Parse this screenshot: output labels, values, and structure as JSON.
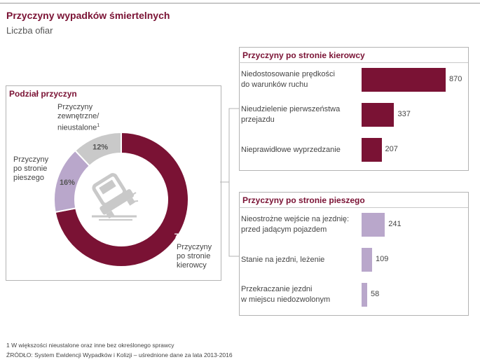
{
  "header": {
    "title": "Przyczyny wypadków śmiertelnych",
    "subtitle": "Liczba ofiar"
  },
  "colors": {
    "driver": "#7a1234",
    "pedestrian": "#b9a7cb",
    "external": "#c9c9c9",
    "accent": "#7a1234"
  },
  "donut": {
    "panel_title": "Podział przyczyn",
    "center_icon": "car-crash-icon",
    "labels": {
      "external_l1": "Przyczyny",
      "external_l2": "zewnętrzne/",
      "external_l3": "nieustalone",
      "external_sup": "1",
      "pedestrian_l1": "Przyczyny",
      "pedestrian_l2": "po stronie",
      "pedestrian_l3": "pieszego",
      "driver_l1": "Przyczyny",
      "driver_l2": "po stronie",
      "driver_l3": "kierowcy"
    }
  },
  "driver_panel": {
    "title": "Przyczyny po stronie kierowcy",
    "items": [
      {
        "l1": "Niedostosowanie prędkości",
        "l2": "do warunków ruchu",
        "value": "870"
      },
      {
        "l1": "Nieudzielenie pierwszeństwa",
        "l2": "przejazdu",
        "value": "337"
      },
      {
        "l1": "Nieprawidłowe wyprzedzanie",
        "l2": "",
        "value": "207"
      }
    ]
  },
  "pedestrian_panel": {
    "title": "Przyczyny po stronie pieszego",
    "items": [
      {
        "l1": "Nieostrożne wejście na jezdnię:",
        "l2": "przed jadącym pojazdem",
        "value": "241"
      },
      {
        "l1": "Stanie na jezdni, leżenie",
        "l2": "",
        "value": "109"
      },
      {
        "l1": "Przekraczanie jezdni",
        "l2": "w miejscu niedozwolonym",
        "value": "58"
      }
    ]
  },
  "footer": {
    "note": "1 W większości nieustalone oraz inne bez określonego sprawcy",
    "source": "ŹRÓDŁO: System Ewidencji Wypadków i Kolizji – uśrednione dane za lata 2013-2016"
  },
  "chart_data": [
    {
      "type": "pie",
      "title": "Podział przyczyn",
      "categories": [
        "Przyczyny po stronie kierowcy",
        "Przyczyny po stronie pieszego",
        "Przyczyny zewnętrzne/nieustalone"
      ],
      "values": [
        72,
        16,
        12
      ],
      "value_labels": [
        "72%",
        "16%",
        "12%"
      ],
      "colors": [
        "#7a1234",
        "#b9a7cb",
        "#c9c9c9"
      ]
    },
    {
      "type": "bar",
      "orientation": "horizontal",
      "title": "Przyczyny po stronie kierowcy",
      "categories": [
        "Niedostosowanie prędkości do warunków ruchu",
        "Nieudzielenie pierwszeństwa przejazdu",
        "Nieprawidłowe wyprzedzanie"
      ],
      "values": [
        870,
        337,
        207
      ],
      "color": "#7a1234"
    },
    {
      "type": "bar",
      "orientation": "horizontal",
      "title": "Przyczyny po stronie pieszego",
      "categories": [
        "Nieostrożne wejście na jezdnię: przed jadącym pojazdem",
        "Stanie na jezdni, leżenie",
        "Przekraczanie jezdni w miejscu niedozwolonym"
      ],
      "values": [
        241,
        109,
        58
      ],
      "color": "#b9a7cb"
    }
  ]
}
